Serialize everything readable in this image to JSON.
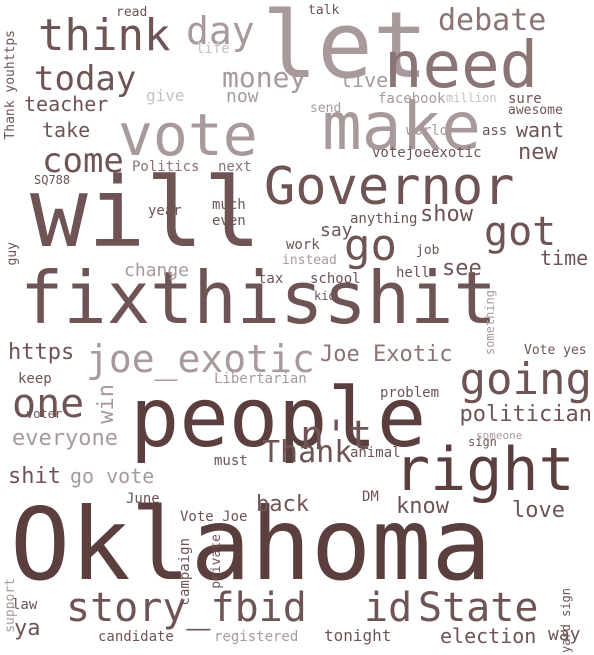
{
  "palette": {
    "background": "#ffffff",
    "darkest": "#5b3f3f",
    "dark": "#6e5454",
    "mid": "#8a7474",
    "light": "#a89a9a",
    "faint": "#c9bfbf"
  },
  "words": [
    {
      "text": "Oklahoma",
      "color": "#5b3f3f"
    },
    {
      "text": "fixthisshit",
      "color": "#6e5454"
    },
    {
      "text": "will",
      "color": "#6e5454"
    },
    {
      "text": "people",
      "color": "#5b3f3f"
    },
    {
      "text": "let",
      "color": "#a89a9a"
    },
    {
      "text": "need",
      "color": "#8a7474"
    },
    {
      "text": "make",
      "color": "#a89a9a"
    },
    {
      "text": "vote",
      "color": "#a89a9a"
    },
    {
      "text": "right",
      "color": "#5b3f3f"
    },
    {
      "text": "Governor",
      "color": "#6e5454"
    },
    {
      "text": "story_fbid",
      "color": "#6e5454"
    },
    {
      "text": "id",
      "color": "#6e5454"
    },
    {
      "text": "State",
      "color": "#6e5454"
    },
    {
      "text": "think",
      "color": "#6e5454"
    },
    {
      "text": "joe_exotic",
      "color": "#a89a9a"
    },
    {
      "text": "going",
      "color": "#6e5454"
    },
    {
      "text": "got",
      "color": "#6e5454"
    },
    {
      "text": "day",
      "color": "#a89a9a"
    },
    {
      "text": "debate",
      "color": "#8a7474"
    },
    {
      "text": "today",
      "color": "#6e5454"
    },
    {
      "text": "go",
      "color": "#6e5454"
    },
    {
      "text": "come",
      "color": "#6e5454"
    },
    {
      "text": "n't",
      "color": "#6e5454"
    },
    {
      "text": "one",
      "color": "#6e5454"
    },
    {
      "text": "money",
      "color": "#a89a9a"
    },
    {
      "text": "Thank",
      "color": "#6e5454"
    },
    {
      "text": "politician",
      "color": "#6e5454"
    },
    {
      "text": "Joe Exotic",
      "color": "#8a7474"
    },
    {
      "text": "everyone",
      "color": "#a89a9a"
    },
    {
      "text": "go vote",
      "color": "#a89a9a"
    },
    {
      "text": "show",
      "color": "#6e5454"
    },
    {
      "text": "time",
      "color": "#6e5454"
    },
    {
      "text": "see",
      "color": "#6e5454"
    },
    {
      "text": "take",
      "color": "#6e5454"
    },
    {
      "text": "teacher",
      "color": "#6e5454"
    },
    {
      "text": "https",
      "color": "#6e5454"
    },
    {
      "text": "new",
      "color": "#6e5454"
    },
    {
      "text": "want",
      "color": "#6e5454"
    },
    {
      "text": "back",
      "color": "#6e5454"
    },
    {
      "text": "know",
      "color": "#6e5454"
    },
    {
      "text": "love",
      "color": "#6e5454"
    },
    {
      "text": "shit",
      "color": "#6e5454"
    },
    {
      "text": "win",
      "color": "#a89a9a"
    },
    {
      "text": "election",
      "color": "#6e5454"
    },
    {
      "text": "tonight",
      "color": "#6e5454"
    },
    {
      "text": "candidate",
      "color": "#6e5454"
    },
    {
      "text": "registered",
      "color": "#a89a9a"
    },
    {
      "text": "ya",
      "color": "#6e5454"
    },
    {
      "text": "law",
      "color": "#6e5454"
    },
    {
      "text": "way",
      "color": "#6e5454"
    },
    {
      "text": "change",
      "color": "#a89a9a"
    },
    {
      "text": "say",
      "color": "#6e5454"
    },
    {
      "text": "live",
      "color": "#a89a9a"
    },
    {
      "text": "now",
      "color": "#a89a9a"
    },
    {
      "text": "give",
      "color": "#c9bfbf"
    },
    {
      "text": "SQ788",
      "color": "#6e5454"
    },
    {
      "text": "Politics",
      "color": "#8a7474"
    },
    {
      "text": "next",
      "color": "#8a7474"
    },
    {
      "text": "votejoeexotic",
      "color": "#6e5454"
    },
    {
      "text": "June",
      "color": "#6e5454"
    },
    {
      "text": "Vote Joe",
      "color": "#6e5454"
    },
    {
      "text": "DM",
      "color": "#6e5454"
    },
    {
      "text": "Libertarian",
      "color": "#a89a9a"
    },
    {
      "text": "keep",
      "color": "#6e5454"
    },
    {
      "text": "voter",
      "color": "#6e5454"
    },
    {
      "text": "problem",
      "color": "#6e5454"
    },
    {
      "text": "Vote yes",
      "color": "#6e5454"
    },
    {
      "text": "sign",
      "color": "#6e5454"
    },
    {
      "text": "animal",
      "color": "#6e5454"
    },
    {
      "text": "must",
      "color": "#6e5454"
    },
    {
      "text": "hell",
      "color": "#6e5454"
    },
    {
      "text": "job",
      "color": "#6e5454"
    },
    {
      "text": "school",
      "color": "#6e5454"
    },
    {
      "text": "kid",
      "color": "#6e5454"
    },
    {
      "text": "tax",
      "color": "#6e5454"
    },
    {
      "text": "work",
      "color": "#6e5454"
    },
    {
      "text": "instead",
      "color": "#a89a9a"
    },
    {
      "text": "guy",
      "color": "#6e5454"
    },
    {
      "text": "year",
      "color": "#6e5454"
    },
    {
      "text": "much",
      "color": "#6e5454"
    },
    {
      "text": "even",
      "color": "#6e5454"
    },
    {
      "text": "anything",
      "color": "#6e5454"
    },
    {
      "text": "world",
      "color": "#a89a9a"
    },
    {
      "text": "ass",
      "color": "#6e5454"
    },
    {
      "text": "facebook",
      "color": "#a89a9a"
    },
    {
      "text": "million",
      "color": "#c9bfbf"
    },
    {
      "text": "sure",
      "color": "#6e5454"
    },
    {
      "text": "awesome",
      "color": "#6e5454"
    },
    {
      "text": "send",
      "color": "#a89a9a"
    },
    {
      "text": "talk",
      "color": "#6e5454"
    },
    {
      "text": "read",
      "color": "#6e5454"
    },
    {
      "text": "life",
      "color": "#c9bfbf"
    },
    {
      "text": "something",
      "color": "#6e5454"
    },
    {
      "text": "campaign",
      "color": "#a89a9a"
    },
    {
      "text": "private",
      "color": "#6e5454"
    },
    {
      "text": "support",
      "color": "#6e5454"
    },
    {
      "text": "yard sign",
      "color": "#a89a9a"
    },
    {
      "text": "someone",
      "color": "#6e5454"
    },
    {
      "text": "Thank youhttps",
      "color": "#a89a9a"
    }
  ]
}
